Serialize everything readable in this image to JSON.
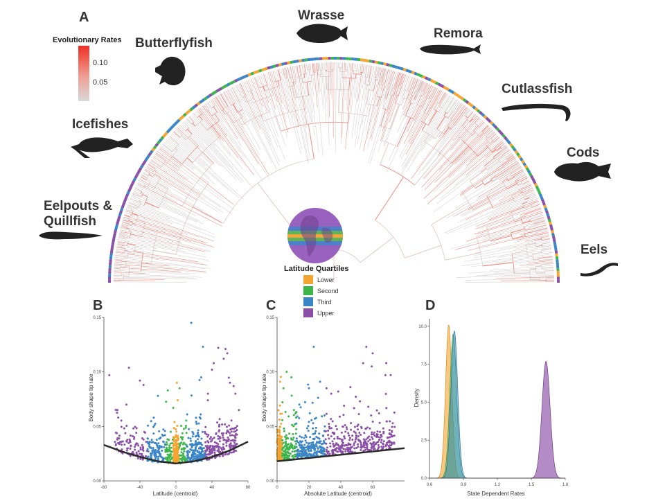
{
  "panel_letters": {
    "a": "A",
    "b": "B",
    "c": "C",
    "d": "D"
  },
  "taxa": {
    "wrasse": "Wrasse",
    "butterflyfish": "Butterflyfish",
    "remora": "Remora",
    "cutlassfish": "Cutlassfish",
    "icefishes": "Icefishes",
    "cods": "Cods",
    "eelpouts_line1": "Eelpouts &",
    "eelpouts_line2": "Quillfish",
    "eels": "Eels"
  },
  "rate_legend": {
    "title": "Evolutionary Rates",
    "ticks": [
      "0.10",
      "0.05"
    ],
    "gradient_colors": [
      "#d9d9d9",
      "#f36b5e",
      "#e8302a"
    ]
  },
  "quartile_legend": {
    "title": "Latitude Quartiles",
    "items": [
      {
        "label": "Lower",
        "color": "#f4a430"
      },
      {
        "label": "Second",
        "color": "#3cb54a"
      },
      {
        "label": "Third",
        "color": "#3a85c6"
      },
      {
        "label": "Upper",
        "color": "#8a4fa6"
      }
    ]
  },
  "chart_data": [
    {
      "panel": "B",
      "type": "scatter",
      "xlabel": "Latitude (centroid)",
      "ylabel": "Body shape tip rate",
      "xlim": [
        -80,
        80
      ],
      "ylim": [
        0,
        0.15
      ],
      "xticks": [
        "-80",
        "-40",
        "0",
        "40",
        "80"
      ],
      "yticks": [
        "0.00",
        "0.05",
        "0.10",
        "0.15"
      ],
      "trend": {
        "x": [
          -80,
          -60,
          -40,
          -20,
          0,
          20,
          40,
          60,
          80
        ],
        "y": [
          0.033,
          0.027,
          0.022,
          0.018,
          0.016,
          0.018,
          0.022,
          0.028,
          0.036
        ]
      },
      "outliers": {
        "x": [
          -74,
          -65,
          -55,
          -40,
          -36,
          -20,
          -9,
          -3,
          1,
          2,
          4,
          17,
          28,
          30,
          40,
          42,
          47,
          53,
          55,
          57,
          60,
          64,
          66,
          70
        ],
        "y": [
          0.097,
          0.065,
          0.07,
          0.092,
          0.088,
          0.078,
          0.083,
          0.067,
          0.09,
          0.074,
          0.085,
          0.145,
          0.095,
          0.123,
          0.102,
          0.108,
          0.122,
          0.112,
          0.121,
          0.117,
          0.09,
          0.087,
          0.08,
          0.065
        ]
      }
    },
    {
      "panel": "C",
      "type": "scatter",
      "xlabel": "Absolute Latitude (centroid)",
      "ylabel": "Body shape tip rate",
      "xlim": [
        0,
        80
      ],
      "ylim": [
        0,
        0.15
      ],
      "xticks": [
        "0",
        "20",
        "40",
        "60"
      ],
      "yticks": [
        "0.00",
        "0.05",
        "0.10",
        "0.15"
      ],
      "trend": {
        "x": [
          0,
          80
        ],
        "y": [
          0.018,
          0.03
        ]
      },
      "outliers": {
        "x": [
          2,
          4,
          6,
          9,
          14,
          20,
          23,
          27,
          31,
          34,
          42,
          46,
          52,
          54,
          56,
          60,
          64,
          68
        ],
        "y": [
          0.091,
          0.085,
          0.1,
          0.095,
          0.07,
          0.085,
          0.123,
          0.091,
          0.085,
          0.08,
          0.069,
          0.086,
          0.073,
          0.108,
          0.123,
          0.117,
          0.062,
          0.097
        ]
      }
    },
    {
      "panel": "D",
      "type": "area",
      "xlabel": "State Dependent Rates",
      "ylabel": "Density",
      "xlim": [
        0.6,
        1.8
      ],
      "ylim": [
        0,
        10.5
      ],
      "xticks": [
        "0.6",
        "0.9",
        "1.2",
        "1.5",
        "1.8"
      ],
      "yticks": [
        "0.0",
        "2.5",
        "5.0",
        "7.5",
        "10.0"
      ],
      "series": [
        {
          "name": "Lower",
          "mode": 0.77,
          "peak": 10.1,
          "width": 0.028
        },
        {
          "name": "Second",
          "mode": 0.81,
          "peak": 9.5,
          "width": 0.03
        },
        {
          "name": "Third",
          "mode": 0.82,
          "peak": 9.7,
          "width": 0.03
        },
        {
          "name": "Upper",
          "mode": 1.63,
          "peak": 7.7,
          "width": 0.036
        }
      ]
    }
  ]
}
